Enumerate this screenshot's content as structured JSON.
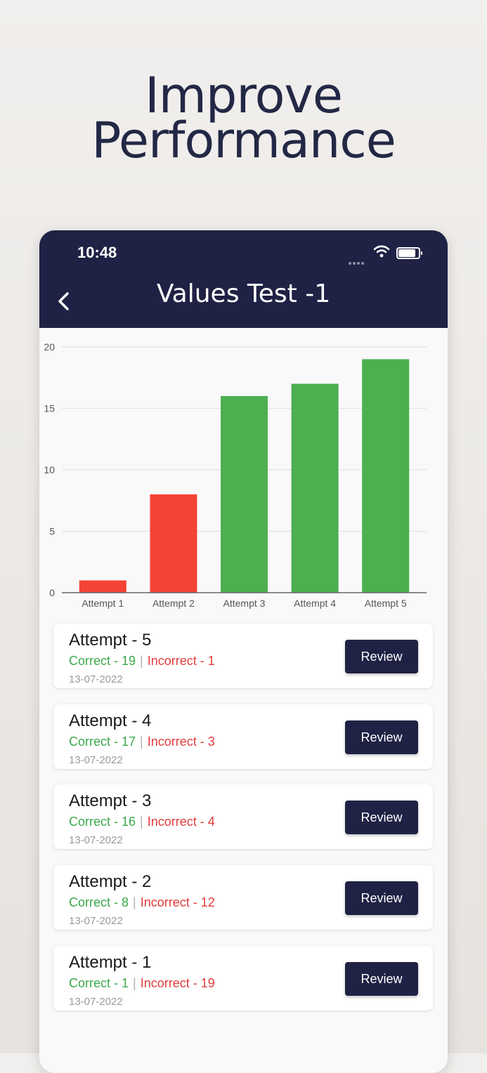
{
  "headline": {
    "line1": "Improve",
    "line2": "Performance"
  },
  "status_bar": {
    "time": "10:48"
  },
  "header": {
    "title": "Values Test -1"
  },
  "colors": {
    "accent": "#1f2244",
    "correct": "#4caf50",
    "incorrect": "#f44336"
  },
  "chart_data": {
    "type": "bar",
    "categories": [
      "Attempt 1",
      "Attempt 2",
      "Attempt 3",
      "Attempt 4",
      "Attempt 5"
    ],
    "values": [
      1,
      8,
      16,
      17,
      19
    ],
    "bar_colors": [
      "#f44336",
      "#f44336",
      "#4caf50",
      "#4caf50",
      "#4caf50"
    ],
    "ylim": [
      0,
      20
    ],
    "yticks": [
      0,
      5,
      10,
      15,
      20
    ],
    "grid": true,
    "title": "",
    "xlabel": "",
    "ylabel": ""
  },
  "attempts": [
    {
      "label": "Attempt - 5",
      "correct": "Correct - 19",
      "incorrect": "Incorrect - 1",
      "date": "13-07-2022",
      "button": "Review"
    },
    {
      "label": "Attempt - 4",
      "correct": "Correct - 17",
      "incorrect": "Incorrect - 3",
      "date": "13-07-2022",
      "button": "Review"
    },
    {
      "label": "Attempt - 3",
      "correct": "Correct - 16",
      "incorrect": "Incorrect - 4",
      "date": "13-07-2022",
      "button": "Review"
    },
    {
      "label": "Attempt - 2",
      "correct": "Correct - 8",
      "incorrect": "Incorrect - 12",
      "date": "13-07-2022",
      "button": "Review"
    },
    {
      "label": "Attempt - 1",
      "correct": "Correct - 1",
      "incorrect": "Incorrect - 19",
      "date": "13-07-2022",
      "button": "Review"
    }
  ]
}
